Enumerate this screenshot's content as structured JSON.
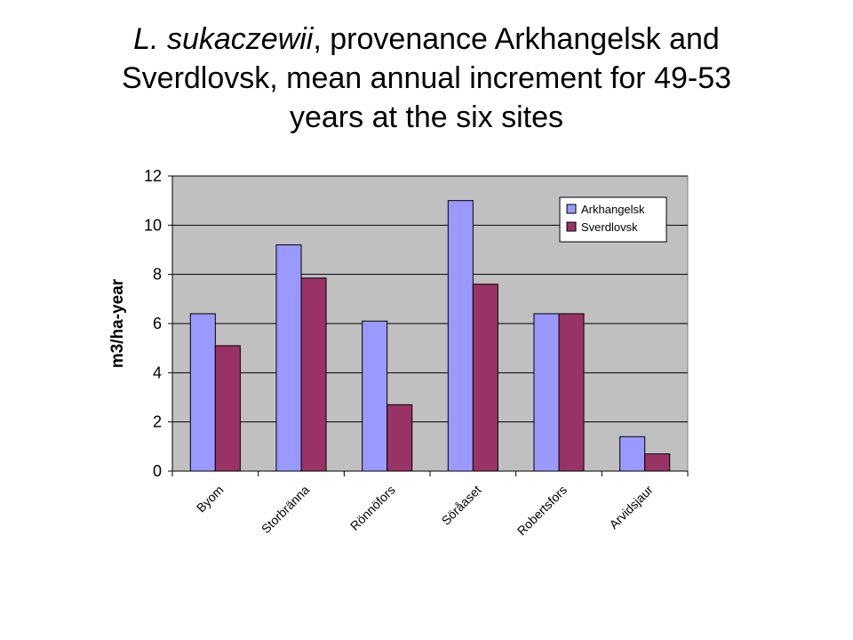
{
  "title": {
    "italic_part": "L. sukaczewii",
    "line1_rest": ", provenance Arkhangelsk and",
    "line2": "Sverdlovsk, mean annual increment for 49-53",
    "line3": "years at the six sites"
  },
  "chart_data": {
    "type": "bar",
    "categories": [
      "Byom",
      "Storbränna",
      "Rönnöfors",
      "Söråaset",
      "Robertsfors",
      "Arvidsjaur"
    ],
    "series": [
      {
        "name": "Arkhangelsk",
        "color": "#9999ff",
        "values": [
          6.4,
          9.2,
          6.1,
          11.0,
          6.4,
          1.4
        ]
      },
      {
        "name": "Sverdlovsk",
        "color": "#993366",
        "values": [
          5.1,
          7.85,
          2.7,
          7.6,
          6.4,
          0.7
        ]
      }
    ],
    "xlabel": "",
    "ylabel": "m3/ha-year",
    "ylim": [
      0,
      12
    ],
    "yticks": [
      0,
      2,
      4,
      6,
      8,
      10,
      12
    ],
    "grid": true,
    "plot_background": "#c0c0c0",
    "legend_position": "top-right"
  }
}
